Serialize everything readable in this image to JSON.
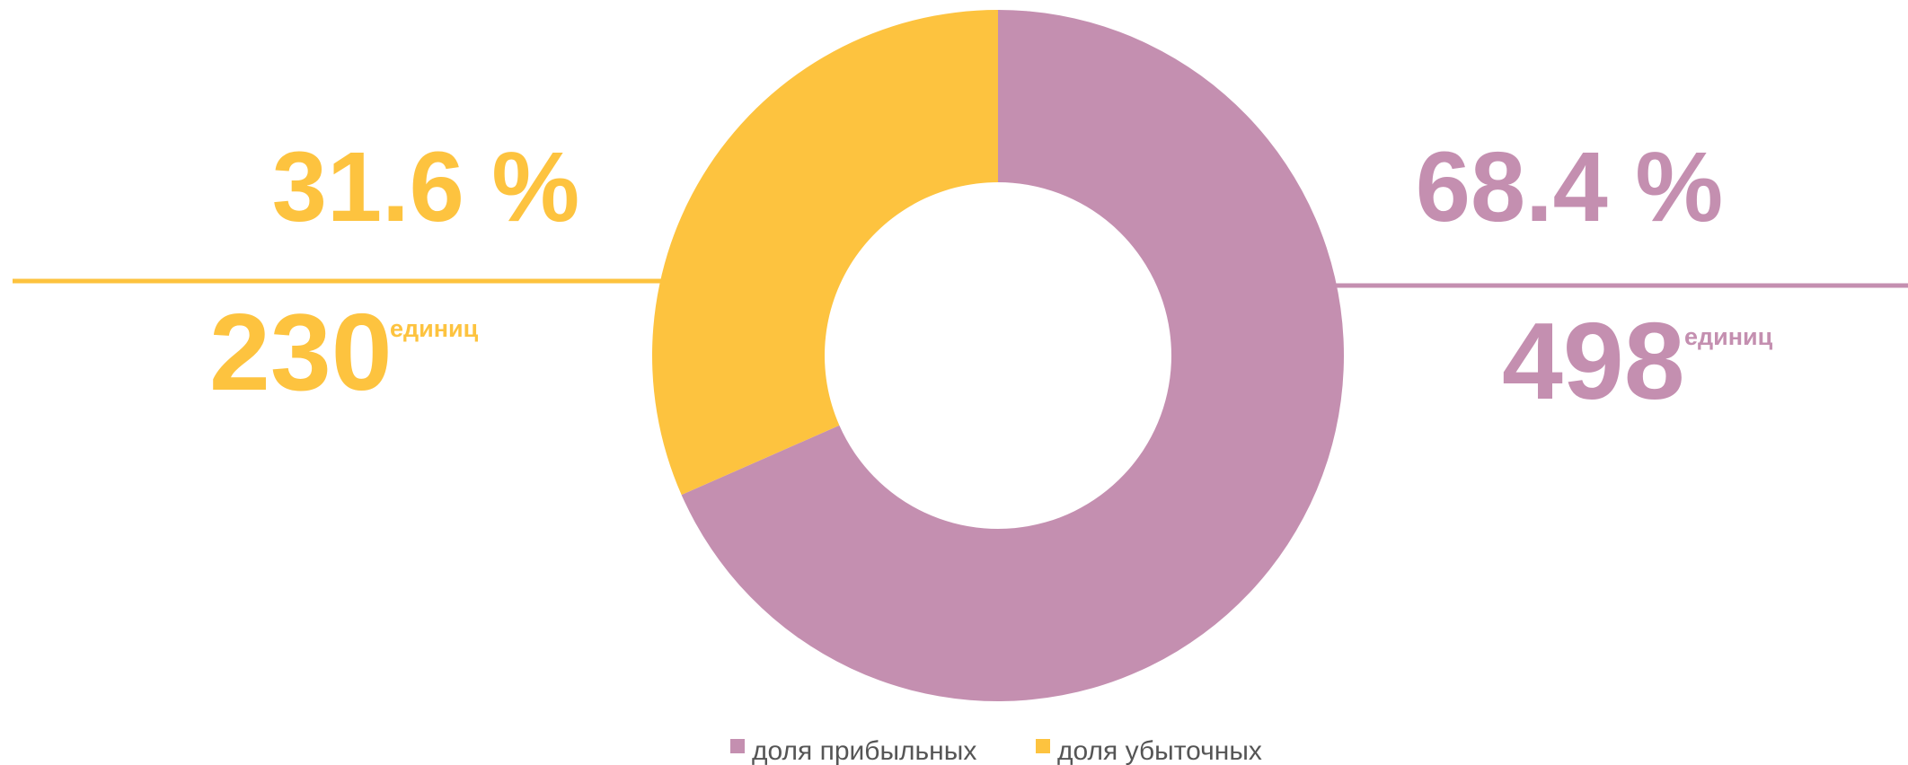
{
  "chart_data": {
    "type": "donut",
    "categories": [
      "доля прибыльных",
      "доля убыточных"
    ],
    "values": [
      68.4,
      31.6
    ],
    "value_labels": [
      "68.4 %",
      "31.6 %"
    ],
    "colors": [
      "#c48fb0",
      "#fdc33f"
    ],
    "counts": [
      498,
      230
    ],
    "count_unit": "единиц",
    "legend": "bottom"
  }
}
